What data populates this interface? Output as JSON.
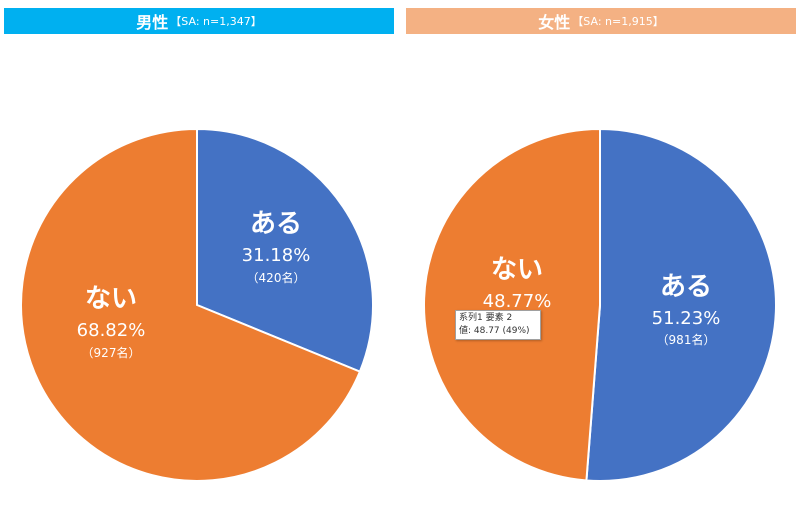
{
  "colors": {
    "male_header": "#00B0F0",
    "female_header": "#F4B183",
    "aru": "#4472C4",
    "nai": "#ED7D31"
  },
  "chart_data": [
    {
      "type": "pie",
      "title": "男性",
      "subtitle": "【SA: n=1,347】",
      "slices": [
        {
          "label": "ある",
          "percent": "31.18%",
          "count": "（420名）",
          "value": 31.18
        },
        {
          "label": "ない",
          "percent": "68.82%",
          "count": "（927名）",
          "value": 68.82
        }
      ]
    },
    {
      "type": "pie",
      "title": "女性",
      "subtitle": "【SA: n=1,915】",
      "slices": [
        {
          "label": "ある",
          "percent": "51.23%",
          "count": "（981名）",
          "value": 51.23
        },
        {
          "label": "ない",
          "percent": "48.77%",
          "count": "",
          "value": 48.77
        }
      ]
    }
  ],
  "tooltip": {
    "line1": "系列1 要素 2",
    "line2": "値: 48.77 (49%)"
  }
}
